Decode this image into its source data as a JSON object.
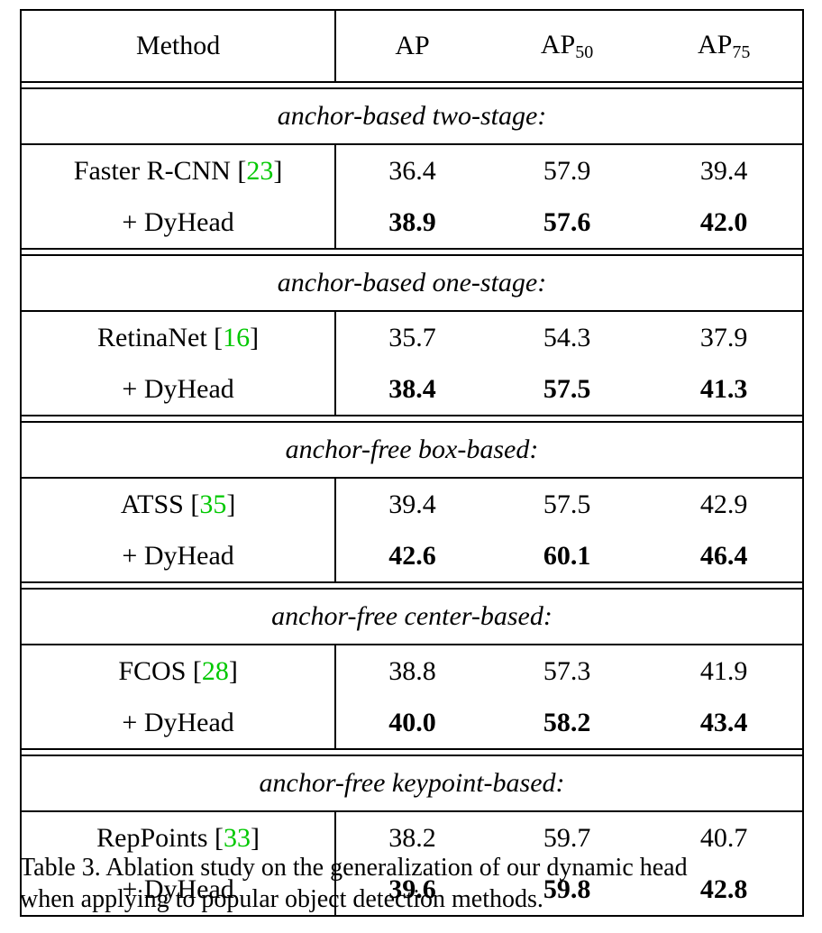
{
  "header": {
    "method": "Method",
    "ap": "AP",
    "ap50_base": "AP",
    "ap50_sub": "50",
    "ap75_base": "AP",
    "ap75_sub": "75"
  },
  "groups": [
    {
      "title": "anchor-based two-stage:",
      "rows": [
        {
          "method": "Faster R-CNN [",
          "cite": "23",
          "close": "]",
          "ap": "36.4",
          "ap50": "57.9",
          "ap75": "39.4"
        },
        {
          "method": "+ DyHead",
          "ap": "38.9",
          "ap50": "57.6",
          "ap75": "42.0"
        }
      ]
    },
    {
      "title": "anchor-based one-stage:",
      "rows": [
        {
          "method": "RetinaNet [",
          "cite": "16",
          "close": "]",
          "ap": "35.7",
          "ap50": "54.3",
          "ap75": "37.9"
        },
        {
          "method": "+ DyHead",
          "ap": "38.4",
          "ap50": "57.5",
          "ap75": "41.3"
        }
      ]
    },
    {
      "title": "anchor-free box-based:",
      "rows": [
        {
          "method": "ATSS [",
          "cite": "35",
          "close": "]",
          "ap": "39.4",
          "ap50": "57.5",
          "ap75": "42.9"
        },
        {
          "method": "+ DyHead",
          "ap": "42.6",
          "ap50": "60.1",
          "ap75": "46.4"
        }
      ]
    },
    {
      "title": "anchor-free center-based:",
      "rows": [
        {
          "method": "FCOS [",
          "cite": "28",
          "close": "]",
          "ap": "38.8",
          "ap50": "57.3",
          "ap75": "41.9"
        },
        {
          "method": "+ DyHead",
          "ap": "40.0",
          "ap50": "58.2",
          "ap75": "43.4"
        }
      ]
    },
    {
      "title": "anchor-free keypoint-based:",
      "rows": [
        {
          "method": "RepPoints [",
          "cite": "33",
          "close": "]",
          "ap": "38.2",
          "ap50": "59.7",
          "ap75": "40.7"
        },
        {
          "method": "+ DyHead",
          "ap": "39.6",
          "ap50": "59.8",
          "ap75": "42.8"
        }
      ]
    }
  ],
  "caption": {
    "line1": "Table 3. Ablation study on the generalization of our dynamic head",
    "line2": "when applying to popular object detection methods."
  },
  "colors": {
    "citation": "#00c800"
  }
}
